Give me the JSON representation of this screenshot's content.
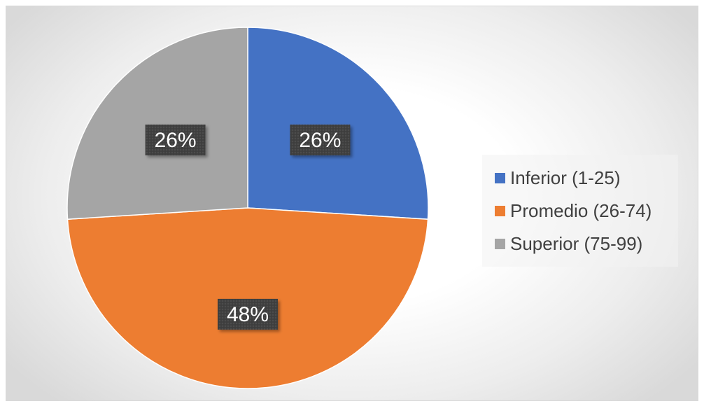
{
  "chart_data": {
    "type": "pie",
    "title": "",
    "categories": [
      "Inferior (1-25)",
      "Promedio (26-74)",
      "Superior (75-99)"
    ],
    "values": [
      26,
      48,
      26
    ],
    "value_format": "percent",
    "data_labels": [
      "26%",
      "48%",
      "26%"
    ],
    "start_angle_deg": 0,
    "direction": "clockwise",
    "colors": [
      "#4472C4",
      "#ED7D31",
      "#A5A5A5"
    ],
    "legend": {
      "position": "right",
      "entries": [
        "Inferior (1-25)",
        "Promedio (26-74)",
        "Superior (75-99)"
      ]
    },
    "data_label_style": {
      "background": "#404040",
      "text_color": "#FFFFFF"
    }
  }
}
